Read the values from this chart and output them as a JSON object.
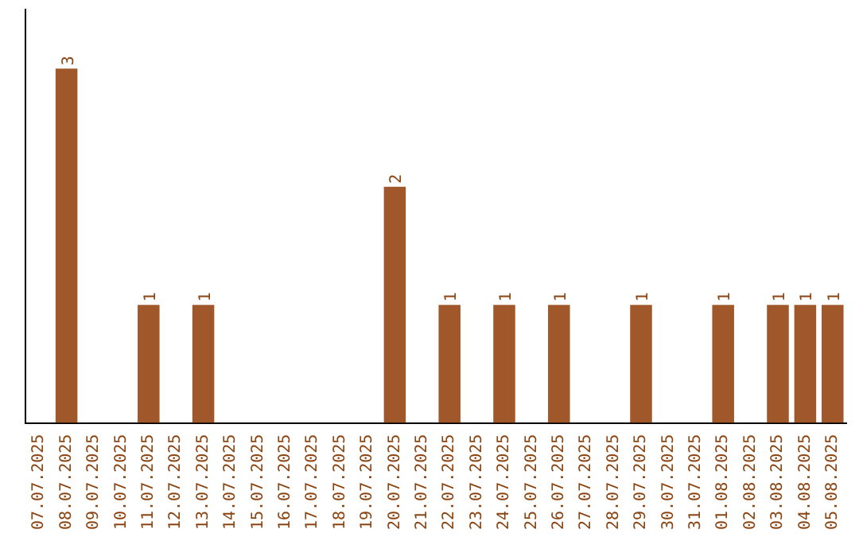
{
  "chart_data": {
    "type": "bar",
    "categories": [
      "07.07.2025",
      "08.07.2025",
      "09.07.2025",
      "10.07.2025",
      "11.07.2025",
      "12.07.2025",
      "13.07.2025",
      "14.07.2025",
      "15.07.2025",
      "16.07.2025",
      "17.07.2025",
      "18.07.2025",
      "19.07.2025",
      "20.07.2025",
      "21.07.2025",
      "22.07.2025",
      "23.07.2025",
      "24.07.2025",
      "25.07.2025",
      "26.07.2025",
      "27.07.2025",
      "28.07.2025",
      "29.07.2025",
      "30.07.2025",
      "31.07.2025",
      "01.08.2025",
      "02.08.2025",
      "03.08.2025",
      "04.08.2025",
      "05.08.2025"
    ],
    "values": [
      0,
      3,
      0,
      0,
      1,
      0,
      1,
      0,
      0,
      0,
      0,
      0,
      0,
      2,
      0,
      1,
      0,
      1,
      0,
      1,
      0,
      0,
      1,
      0,
      0,
      1,
      0,
      1,
      1,
      1
    ],
    "value_labels": [
      null,
      "3",
      null,
      null,
      "1",
      null,
      "1",
      null,
      null,
      null,
      null,
      null,
      null,
      "2",
      null,
      "1",
      null,
      "1",
      null,
      "1",
      null,
      null,
      "1",
      null,
      null,
      "1",
      null,
      "1",
      "1",
      "1"
    ],
    "color": "#a0572a",
    "grid": false,
    "legend": false
  }
}
